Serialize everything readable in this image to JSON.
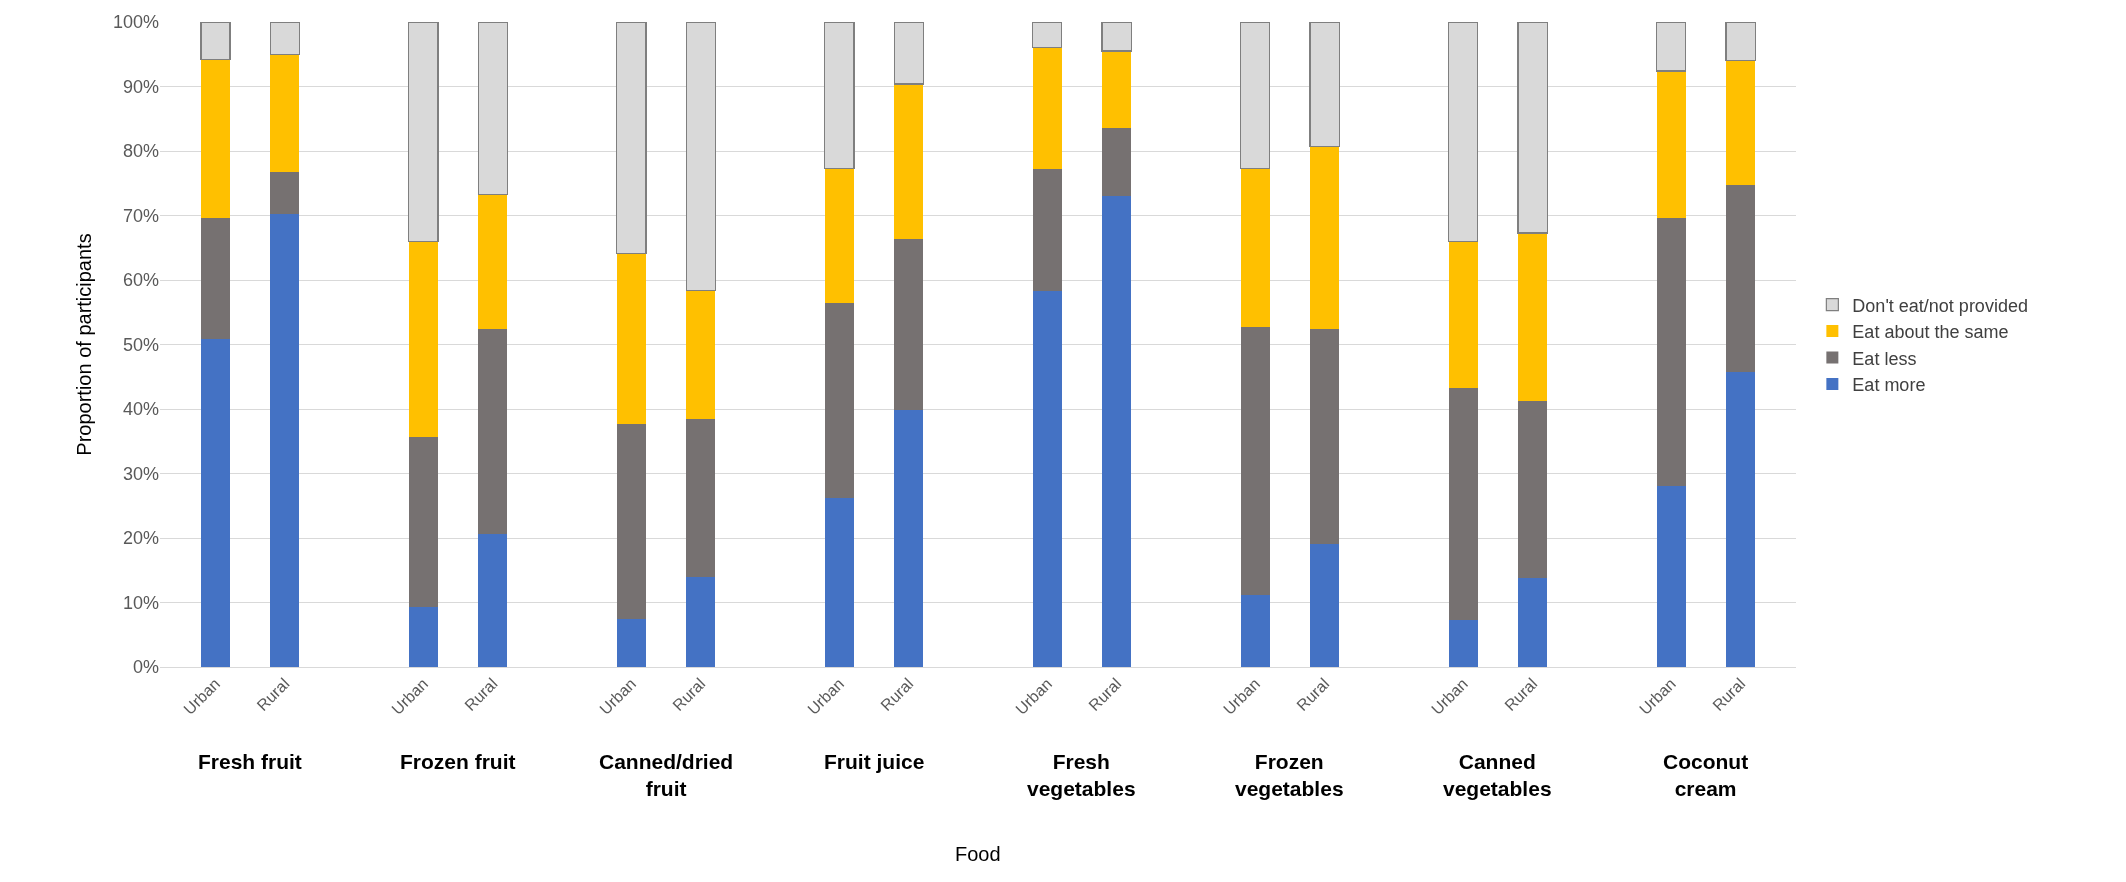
{
  "chart_data": {
    "type": "bar",
    "stacked": true,
    "ylabel": "Proportion of participants",
    "categories": [
      "Urban",
      "Rural",
      "Urban",
      "Rural",
      "Urban",
      "Rural",
      "Urban",
      "Rural",
      "Urban",
      "Rural",
      "Urban",
      "Rural",
      "Urban",
      "Rural",
      "Urban",
      "Rural"
    ],
    "series": [
      {
        "name": "Eat more",
        "color": "#4472c4",
        "values": [
          50.8,
          70.2,
          9.3,
          20.6,
          7.4,
          13.9,
          26.2,
          39.8,
          58.3,
          73.1,
          11.1,
          19.1,
          7.3,
          13.8,
          28.1,
          45.7
        ]
      },
      {
        "name": "Eat less",
        "color": "#767171",
        "values": [
          18.8,
          6.6,
          26.4,
          31.8,
          30.2,
          24.5,
          30.2,
          26.6,
          18.9,
          10.5,
          41.6,
          33.3,
          35.9,
          27.5,
          41.5,
          29.0
        ]
      },
      {
        "name": "Eat about the same",
        "color": "#ffc000",
        "values": [
          24.6,
          18.1,
          30.3,
          20.8,
          26.5,
          20.0,
          20.9,
          24.0,
          18.9,
          11.9,
          24.6,
          28.3,
          22.8,
          26.0,
          22.8,
          19.3
        ]
      },
      {
        "name": "Don't eat/not provided",
        "color": "#d9d9d9",
        "values": [
          5.8,
          5.1,
          34.0,
          26.8,
          35.9,
          41.6,
          22.7,
          9.6,
          3.9,
          4.5,
          22.7,
          19.3,
          34.0,
          32.7,
          7.6,
          6.0
        ]
      }
    ],
    "annotations": [
      "Fresh fruit",
      "Frozen fruit",
      "Canned/dried fruit",
      "Fruit juice",
      "Fresh vegetables",
      "Frozen vegetables",
      "Canned vegetables",
      "Coconut cream",
      "Food"
    ],
    "ylim": [
      0,
      100
    ],
    "yticks": [
      {
        "value": 0,
        "label": "0%"
      },
      {
        "value": 10,
        "label": "10%"
      },
      {
        "value": 20,
        "label": "20%"
      },
      {
        "value": 30,
        "label": "30%"
      },
      {
        "value": 40,
        "label": "40%"
      },
      {
        "value": 50,
        "label": "50%"
      },
      {
        "value": 60,
        "label": "60%"
      },
      {
        "value": 70,
        "label": "70%"
      },
      {
        "value": 80,
        "label": "80%"
      },
      {
        "value": 90,
        "label": "90%"
      },
      {
        "value": 100,
        "label": "100%"
      }
    ],
    "grid": "y",
    "legend": "right"
  }
}
